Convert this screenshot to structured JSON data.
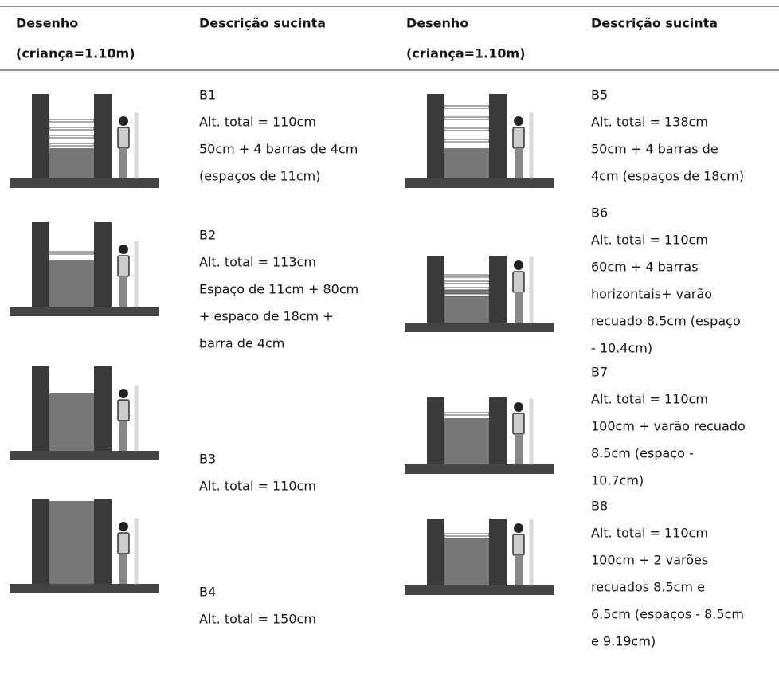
{
  "table": {
    "columns": [
      {
        "title": "Desenho",
        "subtitle": "(criança=1.10m)"
      },
      {
        "title": "Descrição sucinta"
      },
      {
        "title": "Desenho",
        "subtitle": "(criança=1.10m)"
      },
      {
        "title": "Descrição sucinta"
      }
    ],
    "rows": [
      [
        {
          "id": "B1",
          "lines": [
            "Alt. total = 110cm",
            "50cm + 4 barras de 4cm",
            "(espaços de 11cm)"
          ]
        },
        {
          "id": "B5",
          "lines": [
            "Alt. total = 138cm",
            "50cm + 4 barras de",
            "4cm (espaços de 18cm)"
          ]
        }
      ],
      [
        {
          "id": "B2",
          "lines": [
            "Alt. total = 113cm",
            "Espaço de 11cm + 80cm",
            "+ espaço de 18cm +",
            "barra de 4cm"
          ]
        },
        {
          "id": "B6",
          "lines": [
            "Alt. total = 110cm",
            "60cm + 4 barras",
            "horizontais+ varão",
            "recuado 8.5cm (espaço",
            "- 10.4cm)"
          ]
        }
      ],
      [
        {
          "id": "B3",
          "lines": [
            "Alt. total = 110cm"
          ]
        },
        {
          "id": "B7",
          "lines": [
            "Alt. total = 110cm",
            "100cm + varão recuado",
            "8.5cm (espaço -",
            "10.7cm)"
          ]
        }
      ],
      [
        {
          "id": "B4",
          "lines": [
            "Alt. total = 150cm"
          ]
        },
        {
          "id": "B8",
          "lines": [
            "Alt. total = 110cm",
            "100cm + 2 varões",
            "recuados 8.5cm e",
            "6.5cm (espaços - 8.5cm",
            "e 9.19cm)"
          ]
        }
      ]
    ]
  }
}
